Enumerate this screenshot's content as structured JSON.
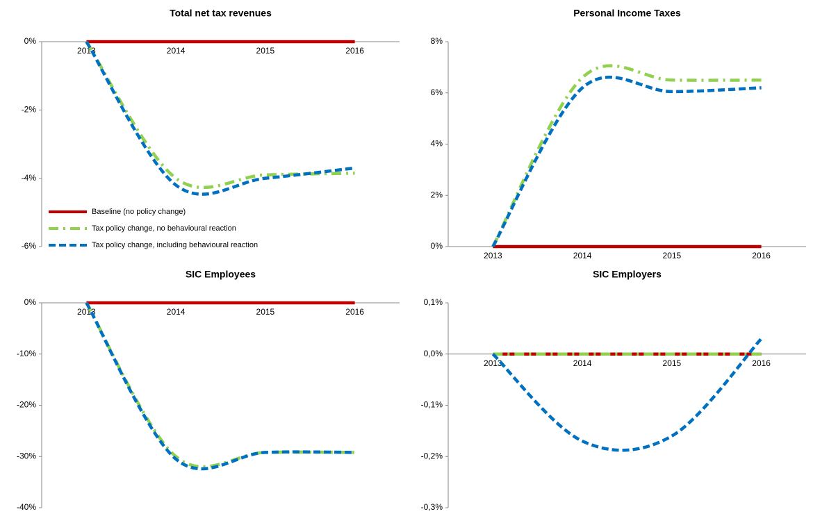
{
  "chart_data": [
    {
      "type": "line",
      "title": "Total net tax revenues",
      "legend": "lower left",
      "categories": [
        "2013",
        "2014",
        "2015",
        "2016"
      ],
      "series": [
        {
          "name": "Baseline (no policy change)",
          "color": "#c00000",
          "dash": "solid",
          "values": [
            0,
            0,
            0,
            0
          ]
        },
        {
          "name": "Tax policy change, no behavioural reaction",
          "color": "#92d050",
          "dash": "dashdot",
          "values": [
            0,
            -4.0,
            -3.9,
            -3.85
          ]
        },
        {
          "name": "Tax policy change, including behavioural reaction",
          "color": "#0070c0",
          "dash": "dash",
          "values": [
            0,
            -4.2,
            -4.0,
            -3.7
          ]
        }
      ],
      "ylim": [
        -6,
        0
      ],
      "yticks": [
        {
          "value": 0,
          "label": "0%"
        },
        {
          "value": -2,
          "label": "-2%"
        },
        {
          "value": -4,
          "label": "-4%"
        },
        {
          "value": -6,
          "label": "-6%"
        }
      ]
    },
    {
      "type": "line",
      "title": "Personal Income Taxes",
      "categories": [
        "2013",
        "2014",
        "2015",
        "2016"
      ],
      "series": [
        {
          "name": "Baseline (no policy change)",
          "color": "#c00000",
          "dash": "solid",
          "values": [
            0,
            0,
            0,
            0
          ]
        },
        {
          "name": "Tax policy change, no behavioural reaction",
          "color": "#92d050",
          "dash": "dashdot",
          "values": [
            0,
            6.6,
            6.5,
            6.5
          ]
        },
        {
          "name": "Tax policy change, including behavioural reaction",
          "color": "#0070c0",
          "dash": "dash",
          "values": [
            0,
            6.2,
            6.05,
            6.2
          ]
        }
      ],
      "ylim": [
        0,
        8
      ],
      "yticks": [
        {
          "value": 0,
          "label": "0%"
        },
        {
          "value": 2,
          "label": "2%"
        },
        {
          "value": 4,
          "label": "4%"
        },
        {
          "value": 6,
          "label": "6%"
        },
        {
          "value": 8,
          "label": "8%"
        }
      ]
    },
    {
      "type": "line",
      "title": "SIC Employees",
      "categories": [
        "2013",
        "2014",
        "2015",
        "2016"
      ],
      "series": [
        {
          "name": "Baseline (no policy change)",
          "color": "#c00000",
          "dash": "solid",
          "values": [
            0,
            0,
            0,
            0
          ]
        },
        {
          "name": "Tax policy change, no behavioural reaction",
          "color": "#92d050",
          "dash": "dashdot",
          "values": [
            0,
            -30,
            -29.2,
            -29.2
          ]
        },
        {
          "name": "Tax policy change, including behavioural reaction",
          "color": "#0070c0",
          "dash": "dash",
          "values": [
            0,
            -30.5,
            -29.2,
            -29.2
          ]
        }
      ],
      "ylim": [
        -40,
        0
      ],
      "yticks": [
        {
          "value": 0,
          "label": "0%"
        },
        {
          "value": -10,
          "label": "-10%"
        },
        {
          "value": -20,
          "label": "-20%"
        },
        {
          "value": -30,
          "label": "-30%"
        },
        {
          "value": -40,
          "label": "-40%"
        }
      ]
    },
    {
      "type": "line",
      "title": "SIC Employers",
      "categories": [
        "2013",
        "2014",
        "2015",
        "2016"
      ],
      "series": [
        {
          "name": "Baseline (no policy change)",
          "color": "#c00000",
          "dash": "solid",
          "values": [
            0,
            0,
            0,
            0
          ]
        },
        {
          "name": "Tax policy change, no behavioural reaction",
          "color": "#92d050",
          "dash": "dashdot",
          "values": [
            0,
            0,
            0,
            0
          ]
        },
        {
          "name": "Tax policy change, including behavioural reaction",
          "color": "#0070c0",
          "dash": "dash",
          "values": [
            0,
            -0.17,
            -0.16,
            0.03
          ]
        }
      ],
      "ylim": [
        -0.3,
        0.1
      ],
      "yticks": [
        {
          "value": 0.1,
          "label": "0,1%"
        },
        {
          "value": 0,
          "label": "0,0%"
        },
        {
          "value": -0.1,
          "label": "-0,1%"
        },
        {
          "value": -0.2,
          "label": "-0,2%"
        },
        {
          "value": -0.3,
          "label": "-0,3%"
        }
      ]
    }
  ]
}
